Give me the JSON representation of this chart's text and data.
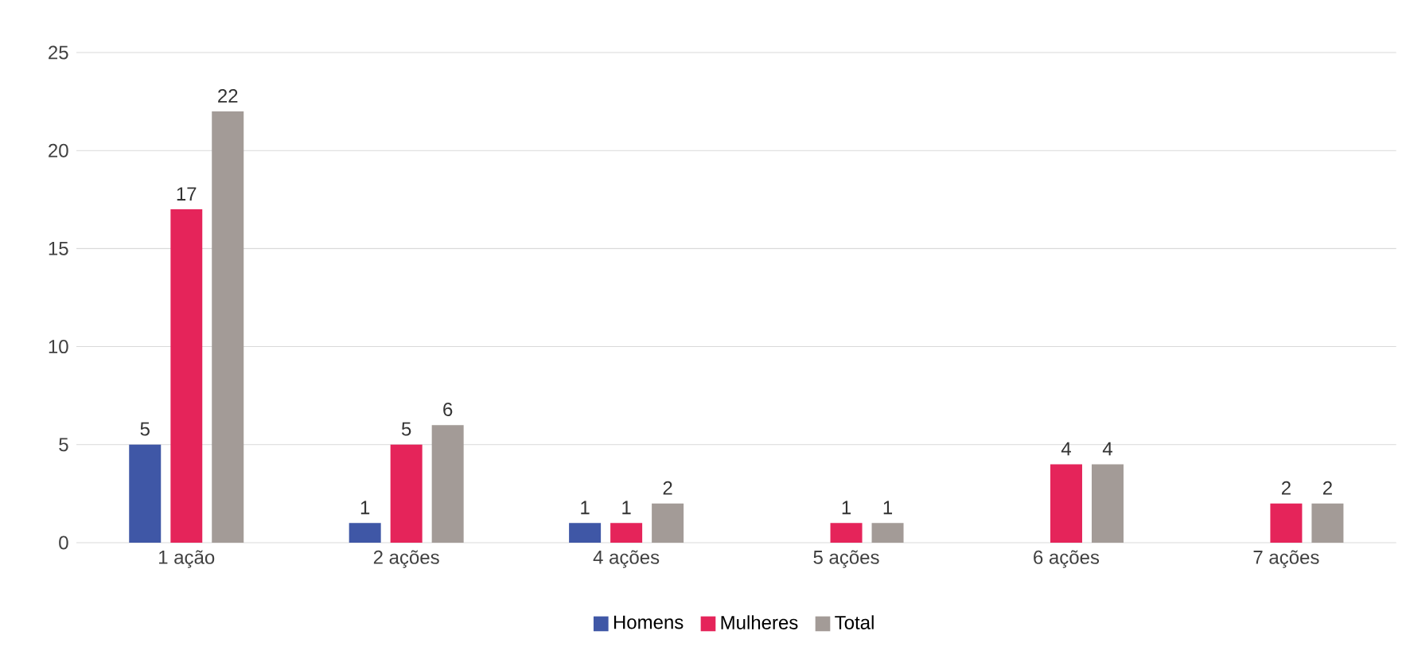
{
  "chart_data": {
    "type": "bar",
    "categories": [
      "1 ação",
      "2 ações",
      "4 ações",
      "5 ações",
      "6 ações",
      "7 ações"
    ],
    "series": [
      {
        "name": "Homens",
        "color": "#3f57a6",
        "values": [
          5,
          1,
          1,
          null,
          null,
          null
        ]
      },
      {
        "name": "Mulheres",
        "color": "#e5245a",
        "values": [
          17,
          5,
          1,
          1,
          4,
          2
        ]
      },
      {
        "name": "Total",
        "color": "#a39b97",
        "values": [
          22,
          6,
          2,
          1,
          4,
          2
        ]
      }
    ],
    "ylim": [
      0,
      25
    ],
    "yticks": [
      0,
      5,
      10,
      15,
      20,
      25
    ],
    "grid": "y",
    "legend": "bottom",
    "data_labels": true
  }
}
